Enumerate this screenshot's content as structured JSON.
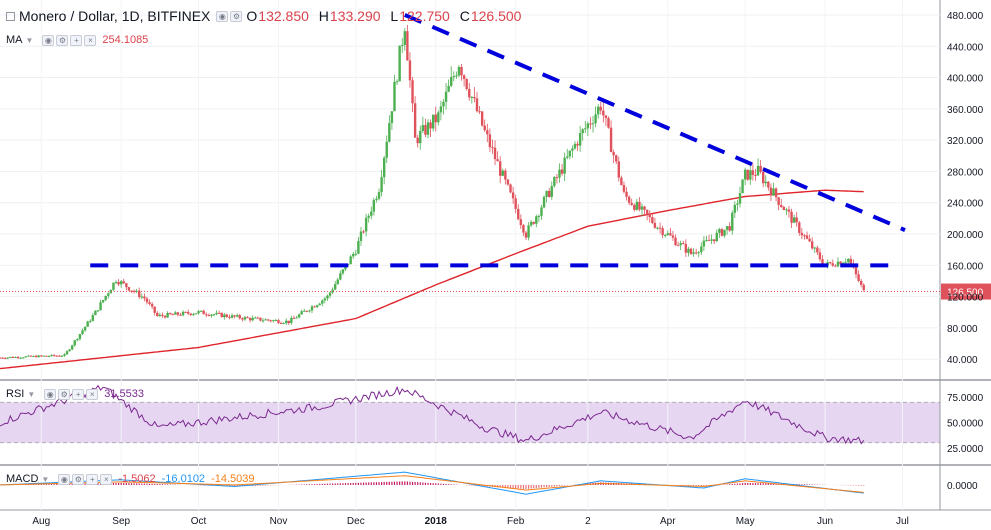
{
  "header": {
    "symbol": "Monero / Dollar, 1D, BITFINEX",
    "ohlc": [
      {
        "k": "O",
        "v": "132.850"
      },
      {
        "k": "H",
        "v": "133.290"
      },
      {
        "k": "L",
        "v": "122.750"
      },
      {
        "k": "C",
        "v": "126.500"
      }
    ]
  },
  "indicators": {
    "ma": {
      "name": "MA",
      "value": "254.1085",
      "color": "#e0242b"
    },
    "rsi": {
      "name": "RSI",
      "value": "31.5533",
      "color": "#7b2a8f"
    },
    "macd": {
      "name": "MACD",
      "values": [
        "-1.5062",
        "-16.0102",
        "-14.5039"
      ],
      "colors": [
        "#d9434c",
        "#2196f3",
        "#f57f17"
      ]
    }
  },
  "colors": {
    "up": "#4caf50",
    "down": "#e0525b",
    "trendline": "#0000dd",
    "ma": "#e0242b",
    "rsi": "#7b2a8f",
    "rsi_band": "#e6d6f2",
    "macd_line": "#2196f3",
    "signal_line": "#f57f17",
    "hist": "#c2185b"
  },
  "chart_data": {
    "type": "candlestick",
    "title": "Monero / Dollar, 1D, BITFINEX",
    "x_ticks": [
      "Aug",
      "Sep",
      "Oct",
      "Nov",
      "Dec",
      "2018",
      "Feb",
      "2",
      "Apr",
      "May",
      "Jun",
      "Jul"
    ],
    "y_ticks": [
      "480.000",
      "440.000",
      "400.000",
      "360.000",
      "320.000",
      "280.000",
      "240.000",
      "200.000",
      "160.000",
      "120.000",
      "80.000",
      "40.000"
    ],
    "ylim": [
      16,
      494
    ],
    "last_price": "126.500",
    "price_keypoints": [
      {
        "date": "2017-07-16",
        "close": 42
      },
      {
        "date": "2017-08-10",
        "close": 45
      },
      {
        "date": "2017-08-22",
        "close": 100
      },
      {
        "date": "2017-08-30",
        "close": 142
      },
      {
        "date": "2017-09-10",
        "close": 118
      },
      {
        "date": "2017-09-15",
        "close": 95
      },
      {
        "date": "2017-10-01",
        "close": 100
      },
      {
        "date": "2017-10-20",
        "close": 92
      },
      {
        "date": "2017-11-05",
        "close": 88
      },
      {
        "date": "2017-11-20",
        "close": 120
      },
      {
        "date": "2017-12-01",
        "close": 180
      },
      {
        "date": "2017-12-10",
        "close": 260
      },
      {
        "date": "2017-12-20",
        "close": 470
      },
      {
        "date": "2017-12-24",
        "close": 320
      },
      {
        "date": "2018-01-02",
        "close": 350
      },
      {
        "date": "2018-01-10",
        "close": 420
      },
      {
        "date": "2018-01-20",
        "close": 330
      },
      {
        "date": "2018-02-05",
        "close": 200
      },
      {
        "date": "2018-02-15",
        "close": 260
      },
      {
        "date": "2018-02-25",
        "close": 320
      },
      {
        "date": "2018-03-06",
        "close": 365
      },
      {
        "date": "2018-03-15",
        "close": 250
      },
      {
        "date": "2018-03-28",
        "close": 210
      },
      {
        "date": "2018-04-10",
        "close": 175
      },
      {
        "date": "2018-04-25",
        "close": 210
      },
      {
        "date": "2018-05-01",
        "close": 275
      },
      {
        "date": "2018-05-06",
        "close": 280
      },
      {
        "date": "2018-05-20",
        "close": 215
      },
      {
        "date": "2018-06-01",
        "close": 160
      },
      {
        "date": "2018-06-10",
        "close": 168
      },
      {
        "date": "2018-06-16",
        "close": 126.5
      }
    ],
    "ma_keypoints": [
      {
        "date": "2017-07-16",
        "value": 28
      },
      {
        "date": "2017-10-01",
        "value": 55
      },
      {
        "date": "2017-12-01",
        "value": 92
      },
      {
        "date": "2018-01-01",
        "value": 135
      },
      {
        "date": "2018-02-01",
        "value": 175
      },
      {
        "date": "2018-03-01",
        "value": 210
      },
      {
        "date": "2018-04-01",
        "value": 230
      },
      {
        "date": "2018-05-01",
        "value": 248
      },
      {
        "date": "2018-06-01",
        "value": 256
      },
      {
        "date": "2018-06-16",
        "value": 254.1085
      }
    ],
    "trendlines": [
      {
        "from": {
          "date": "2017-12-20",
          "price": 480
        },
        "to": {
          "date": "2018-07-02",
          "price": 205
        }
      },
      {
        "from": {
          "date": "2017-08-20",
          "price": 160
        },
        "to": {
          "date": "2018-06-27",
          "price": 160
        }
      }
    ],
    "rsi": {
      "y_ticks": [
        "75.0000",
        "50.0000",
        "25.0000"
      ],
      "ylim": [
        10,
        90
      ],
      "band": [
        30,
        70
      ],
      "keypoints": [
        {
          "date": "2017-07-16",
          "value": 50
        },
        {
          "date": "2017-08-25",
          "value": 85
        },
        {
          "date": "2017-09-15",
          "value": 45
        },
        {
          "date": "2017-11-15",
          "value": 65
        },
        {
          "date": "2017-12-20",
          "value": 83
        },
        {
          "date": "2018-01-20",
          "value": 45
        },
        {
          "date": "2018-02-05",
          "value": 32
        },
        {
          "date": "2018-03-06",
          "value": 60
        },
        {
          "date": "2018-04-10",
          "value": 35
        },
        {
          "date": "2018-05-01",
          "value": 72
        },
        {
          "date": "2018-06-01",
          "value": 35
        },
        {
          "date": "2018-06-16",
          "value": 31.5533
        }
      ]
    },
    "macd": {
      "y_ticks": [
        "0.0000"
      ],
      "ylim": [
        -45,
        35
      ],
      "keypoints": [
        {
          "date": "2017-07-16",
          "macd": 0,
          "signal": 0
        },
        {
          "date": "2017-09-01",
          "macd": 10,
          "signal": 6
        },
        {
          "date": "2017-10-15",
          "macd": -3,
          "signal": 0
        },
        {
          "date": "2017-12-20",
          "macd": 25,
          "signal": 18
        },
        {
          "date": "2018-02-05",
          "macd": -18,
          "signal": -10
        },
        {
          "date": "2018-03-06",
          "macd": 8,
          "signal": 3
        },
        {
          "date": "2018-04-15",
          "macd": -6,
          "signal": -3
        },
        {
          "date": "2018-05-01",
          "macd": 12,
          "signal": 8
        },
        {
          "date": "2018-06-16",
          "macd": -16.0102,
          "signal": -14.5039
        }
      ]
    }
  }
}
